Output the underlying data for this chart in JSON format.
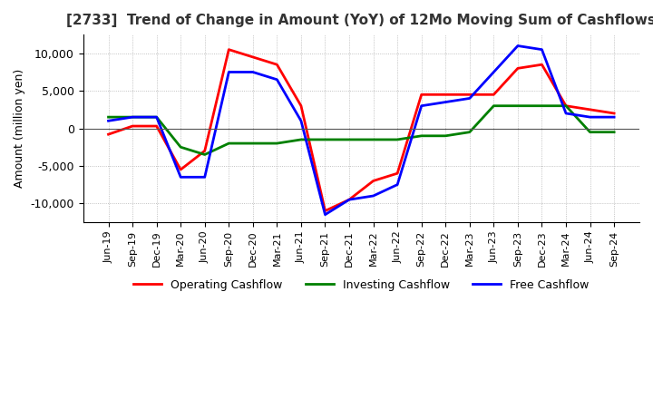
{
  "title": "[2733]  Trend of Change in Amount (YoY) of 12Mo Moving Sum of Cashflows",
  "ylabel": "Amount (million yen)",
  "xlabels": [
    "Jun-19",
    "Sep-19",
    "Dec-19",
    "Mar-20",
    "Jun-20",
    "Sep-20",
    "Dec-20",
    "Mar-21",
    "Jun-21",
    "Sep-21",
    "Dec-21",
    "Mar-22",
    "Jun-22",
    "Sep-22",
    "Dec-22",
    "Mar-23",
    "Jun-23",
    "Sep-23",
    "Dec-23",
    "Mar-24",
    "Jun-24",
    "Sep-24"
  ],
  "operating": [
    -800,
    300,
    300,
    -5500,
    -3000,
    10500,
    9500,
    8500,
    3000,
    -11000,
    -9500,
    -7000,
    -6000,
    4500,
    4500,
    4500,
    4500,
    8000,
    8500,
    3000,
    2500,
    2000
  ],
  "investing": [
    1500,
    1500,
    1500,
    -2500,
    -3500,
    -2000,
    -2000,
    -2000,
    -1500,
    -1500,
    -1500,
    -1500,
    -1500,
    -1000,
    -1000,
    -500,
    3000,
    3000,
    3000,
    3000,
    -500,
    -500
  ],
  "free": [
    1000,
    1500,
    1500,
    -6500,
    -6500,
    7500,
    7500,
    6500,
    1000,
    -11500,
    -9500,
    -9000,
    -7500,
    3000,
    3500,
    4000,
    7500,
    11000,
    10500,
    2000,
    1500,
    1500
  ],
  "ylim": [
    -12500,
    12500
  ],
  "yticks": [
    -10000,
    -5000,
    0,
    5000,
    10000
  ],
  "operating_color": "#ff0000",
  "investing_color": "#008000",
  "free_color": "#0000ff",
  "title_color": "#333333",
  "grid_color": "#b0b0b0",
  "grid_style": ":",
  "background_color": "#ffffff",
  "title_fontsize": 11,
  "axis_fontsize": 9,
  "tick_fontsize": 8,
  "legend_fontsize": 9,
  "linewidth": 2.0
}
